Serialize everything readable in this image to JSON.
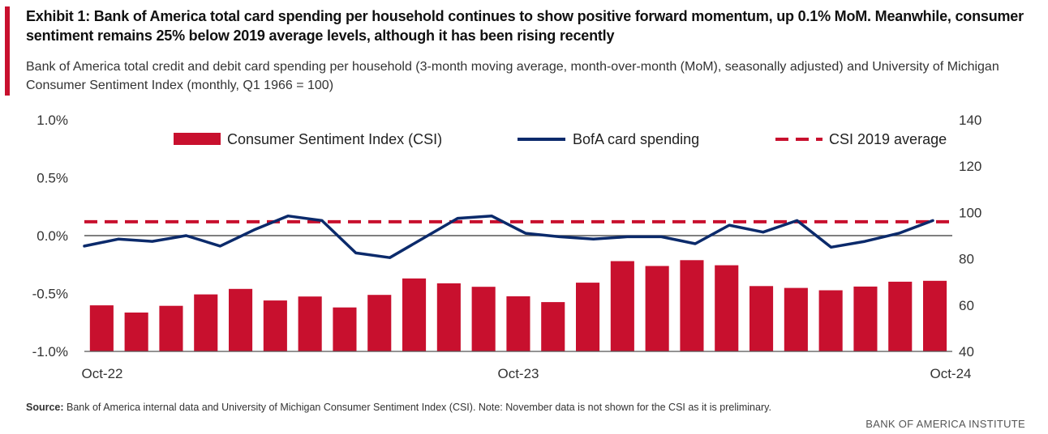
{
  "chart_data": {
    "type": "bar+line",
    "title": "Exhibit 1: Bank of America total card spending per household continues to show positive forward momentum, up 0.1% MoM. Meanwhile, consumer sentiment remains 25% below 2019 average levels, although it has been rising recently",
    "subtitle": "Bank of America total credit and debit card spending per household (3-month moving average, month-over-month (MoM), seasonally adjusted) and University of Michigan Consumer Sentiment Index (monthly, Q1 1966 = 100)",
    "x_tick_labels": [
      "Oct-22",
      "Oct-23",
      "Oct-24"
    ],
    "left_axis": {
      "ylim": [
        -1.0,
        1.0
      ],
      "ticks": [
        "1.0%",
        "0.5%",
        "0.0%",
        "-0.5%",
        "-1.0%"
      ]
    },
    "right_axis": {
      "ylim": [
        40,
        140
      ],
      "ticks": [
        "140",
        "120",
        "100",
        "80",
        "60",
        "40"
      ]
    },
    "legend": {
      "placement": "top",
      "entries": [
        "Consumer Sentiment Index (CSI)",
        "BofA card spending",
        "CSI 2019 average"
      ]
    },
    "series": [
      {
        "name": "Consumer Sentiment Index (CSI)",
        "type": "bar",
        "axis": "right",
        "color": "#C8102E",
        "values": [
          59.9,
          56.8,
          59.7,
          64.6,
          67.0,
          62.0,
          63.7,
          59.0,
          64.4,
          71.5,
          69.4,
          67.9,
          63.8,
          61.3,
          69.7,
          79.0,
          76.9,
          79.4,
          77.2,
          68.2,
          67.4,
          66.4,
          68.0,
          70.1,
          70.5
        ]
      },
      {
        "name": "BofA card spending",
        "type": "line",
        "axis": "left",
        "color": "#0B2A6B",
        "values": [
          -0.09,
          -0.03,
          -0.05,
          0.0,
          -0.09,
          0.05,
          0.17,
          0.13,
          -0.15,
          -0.19,
          -0.02,
          0.15,
          0.17,
          0.02,
          -0.01,
          -0.03,
          -0.01,
          -0.01,
          -0.07,
          0.09,
          0.03,
          0.13,
          -0.1,
          -0.05,
          0.02,
          0.13
        ]
      },
      {
        "name": "CSI 2019 average",
        "type": "dashed-line",
        "axis": "right",
        "color": "#C8102E",
        "value": 96.0
      }
    ]
  },
  "source": {
    "label": "Source:",
    "text": " Bank of America internal data and University of Michigan Consumer Sentiment Index (CSI).  Note: November data is not shown for the CSI as it is preliminary."
  },
  "brand": "BANK OF AMERICA INSTITUTE"
}
